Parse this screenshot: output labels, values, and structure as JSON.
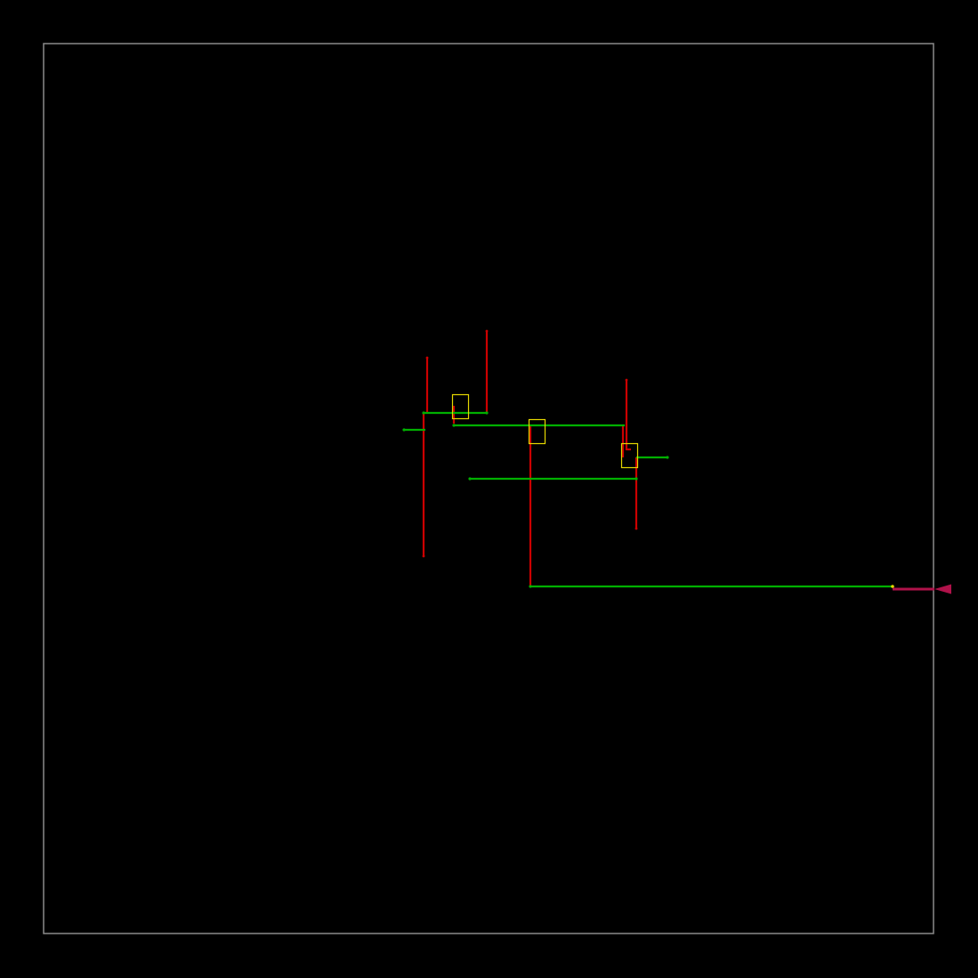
{
  "colors": {
    "background": "#000000",
    "die_outline": "#8a8a8a",
    "vertical_wire": "#cc0000",
    "horizontal_wire": "#00b000",
    "cell_outline": "#e6d800",
    "io_pin": "#b0124a"
  },
  "layout_elements": {
    "die_boundary": 1,
    "cells": 3,
    "vertical_wires": 7,
    "horizontal_wires": 7,
    "io_pins": 1
  }
}
